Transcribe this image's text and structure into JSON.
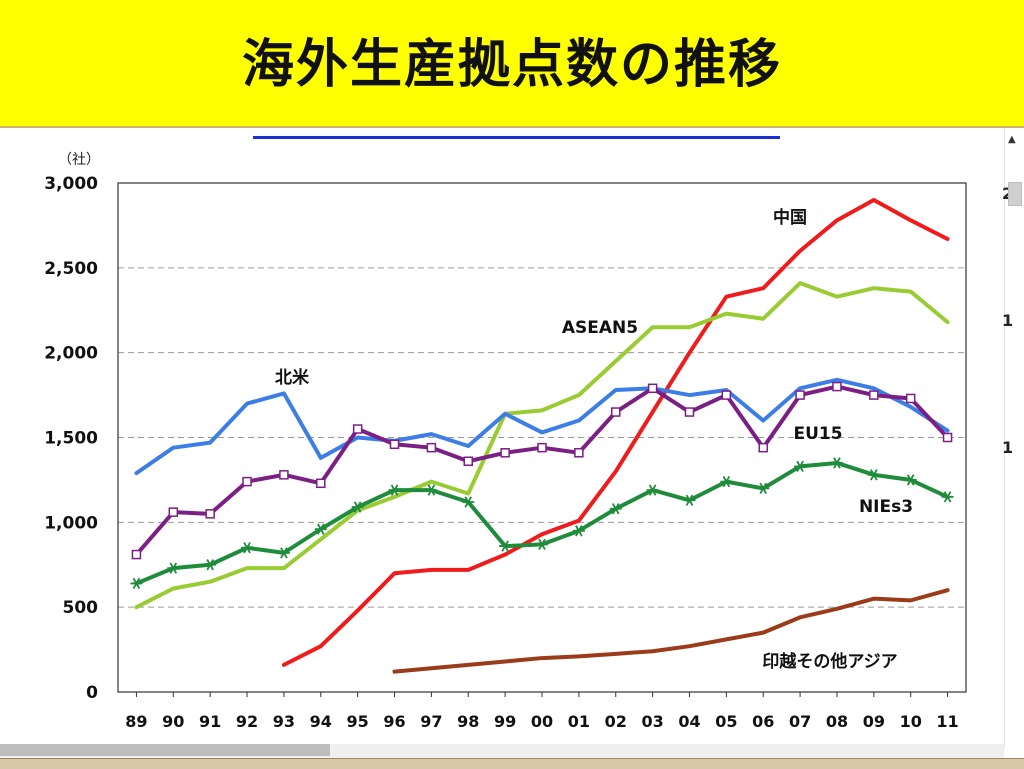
{
  "title": "海外生産拠点数の推移",
  "right_strip_digits": [
    "2",
    "1",
    "1"
  ],
  "chart_data": {
    "type": "line",
    "yunit": "（社）",
    "ylim": [
      0,
      3000
    ],
    "yticks": [
      "0",
      "500",
      "1,000",
      "1,500",
      "2,000",
      "2,500",
      "3,000"
    ],
    "categories": [
      "89",
      "90",
      "91",
      "92",
      "93",
      "94",
      "95",
      "96",
      "97",
      "98",
      "99",
      "00",
      "01",
      "02",
      "03",
      "04",
      "05",
      "06",
      "07",
      "08",
      "09",
      "10",
      "11"
    ],
    "grid": "horizontal dashed",
    "series": [
      {
        "name": "中国",
        "color": "#ee1c1c",
        "marker": "none",
        "values": [
          null,
          null,
          null,
          null,
          160,
          270,
          480,
          700,
          720,
          720,
          810,
          930,
          1010,
          1300,
          1650,
          2000,
          2330,
          2380,
          2600,
          2780,
          2900,
          2780,
          2670
        ]
      },
      {
        "name": "ASEAN5",
        "color": "#99cc33",
        "marker": "none",
        "values": [
          500,
          610,
          650,
          730,
          730,
          900,
          1070,
          1150,
          1240,
          1170,
          1640,
          1660,
          1750,
          1950,
          2150,
          2150,
          2230,
          2200,
          2410,
          2330,
          2380,
          2360,
          2180
        ]
      },
      {
        "name": "北米",
        "color": "#3d7ee6",
        "marker": "none",
        "values": [
          1290,
          1440,
          1470,
          1700,
          1760,
          1380,
          1500,
          1480,
          1520,
          1450,
          1640,
          1530,
          1600,
          1780,
          1790,
          1750,
          1780,
          1600,
          1790,
          1840,
          1790,
          1680,
          1540
        ]
      },
      {
        "name": "EU15",
        "color": "#7b1f85",
        "marker": "square",
        "values": [
          810,
          1060,
          1050,
          1240,
          1280,
          1230,
          1550,
          1460,
          1440,
          1360,
          1410,
          1440,
          1410,
          1650,
          1790,
          1650,
          1750,
          1440,
          1750,
          1800,
          1750,
          1730,
          1500
        ]
      },
      {
        "name": "NIEs3",
        "color": "#1e8c3a",
        "marker": "star",
        "values": [
          640,
          730,
          750,
          850,
          820,
          960,
          1090,
          1190,
          1190,
          1120,
          860,
          870,
          950,
          1080,
          1190,
          1130,
          1240,
          1200,
          1330,
          1350,
          1280,
          1250,
          1150
        ]
      },
      {
        "name": "印越その他アジア",
        "color": "#9b3b1a",
        "marker": "none",
        "values": [
          null,
          null,
          null,
          null,
          null,
          null,
          null,
          120,
          140,
          160,
          180,
          200,
          210,
          225,
          240,
          270,
          310,
          350,
          440,
          490,
          550,
          540,
          600
        ]
      }
    ]
  }
}
